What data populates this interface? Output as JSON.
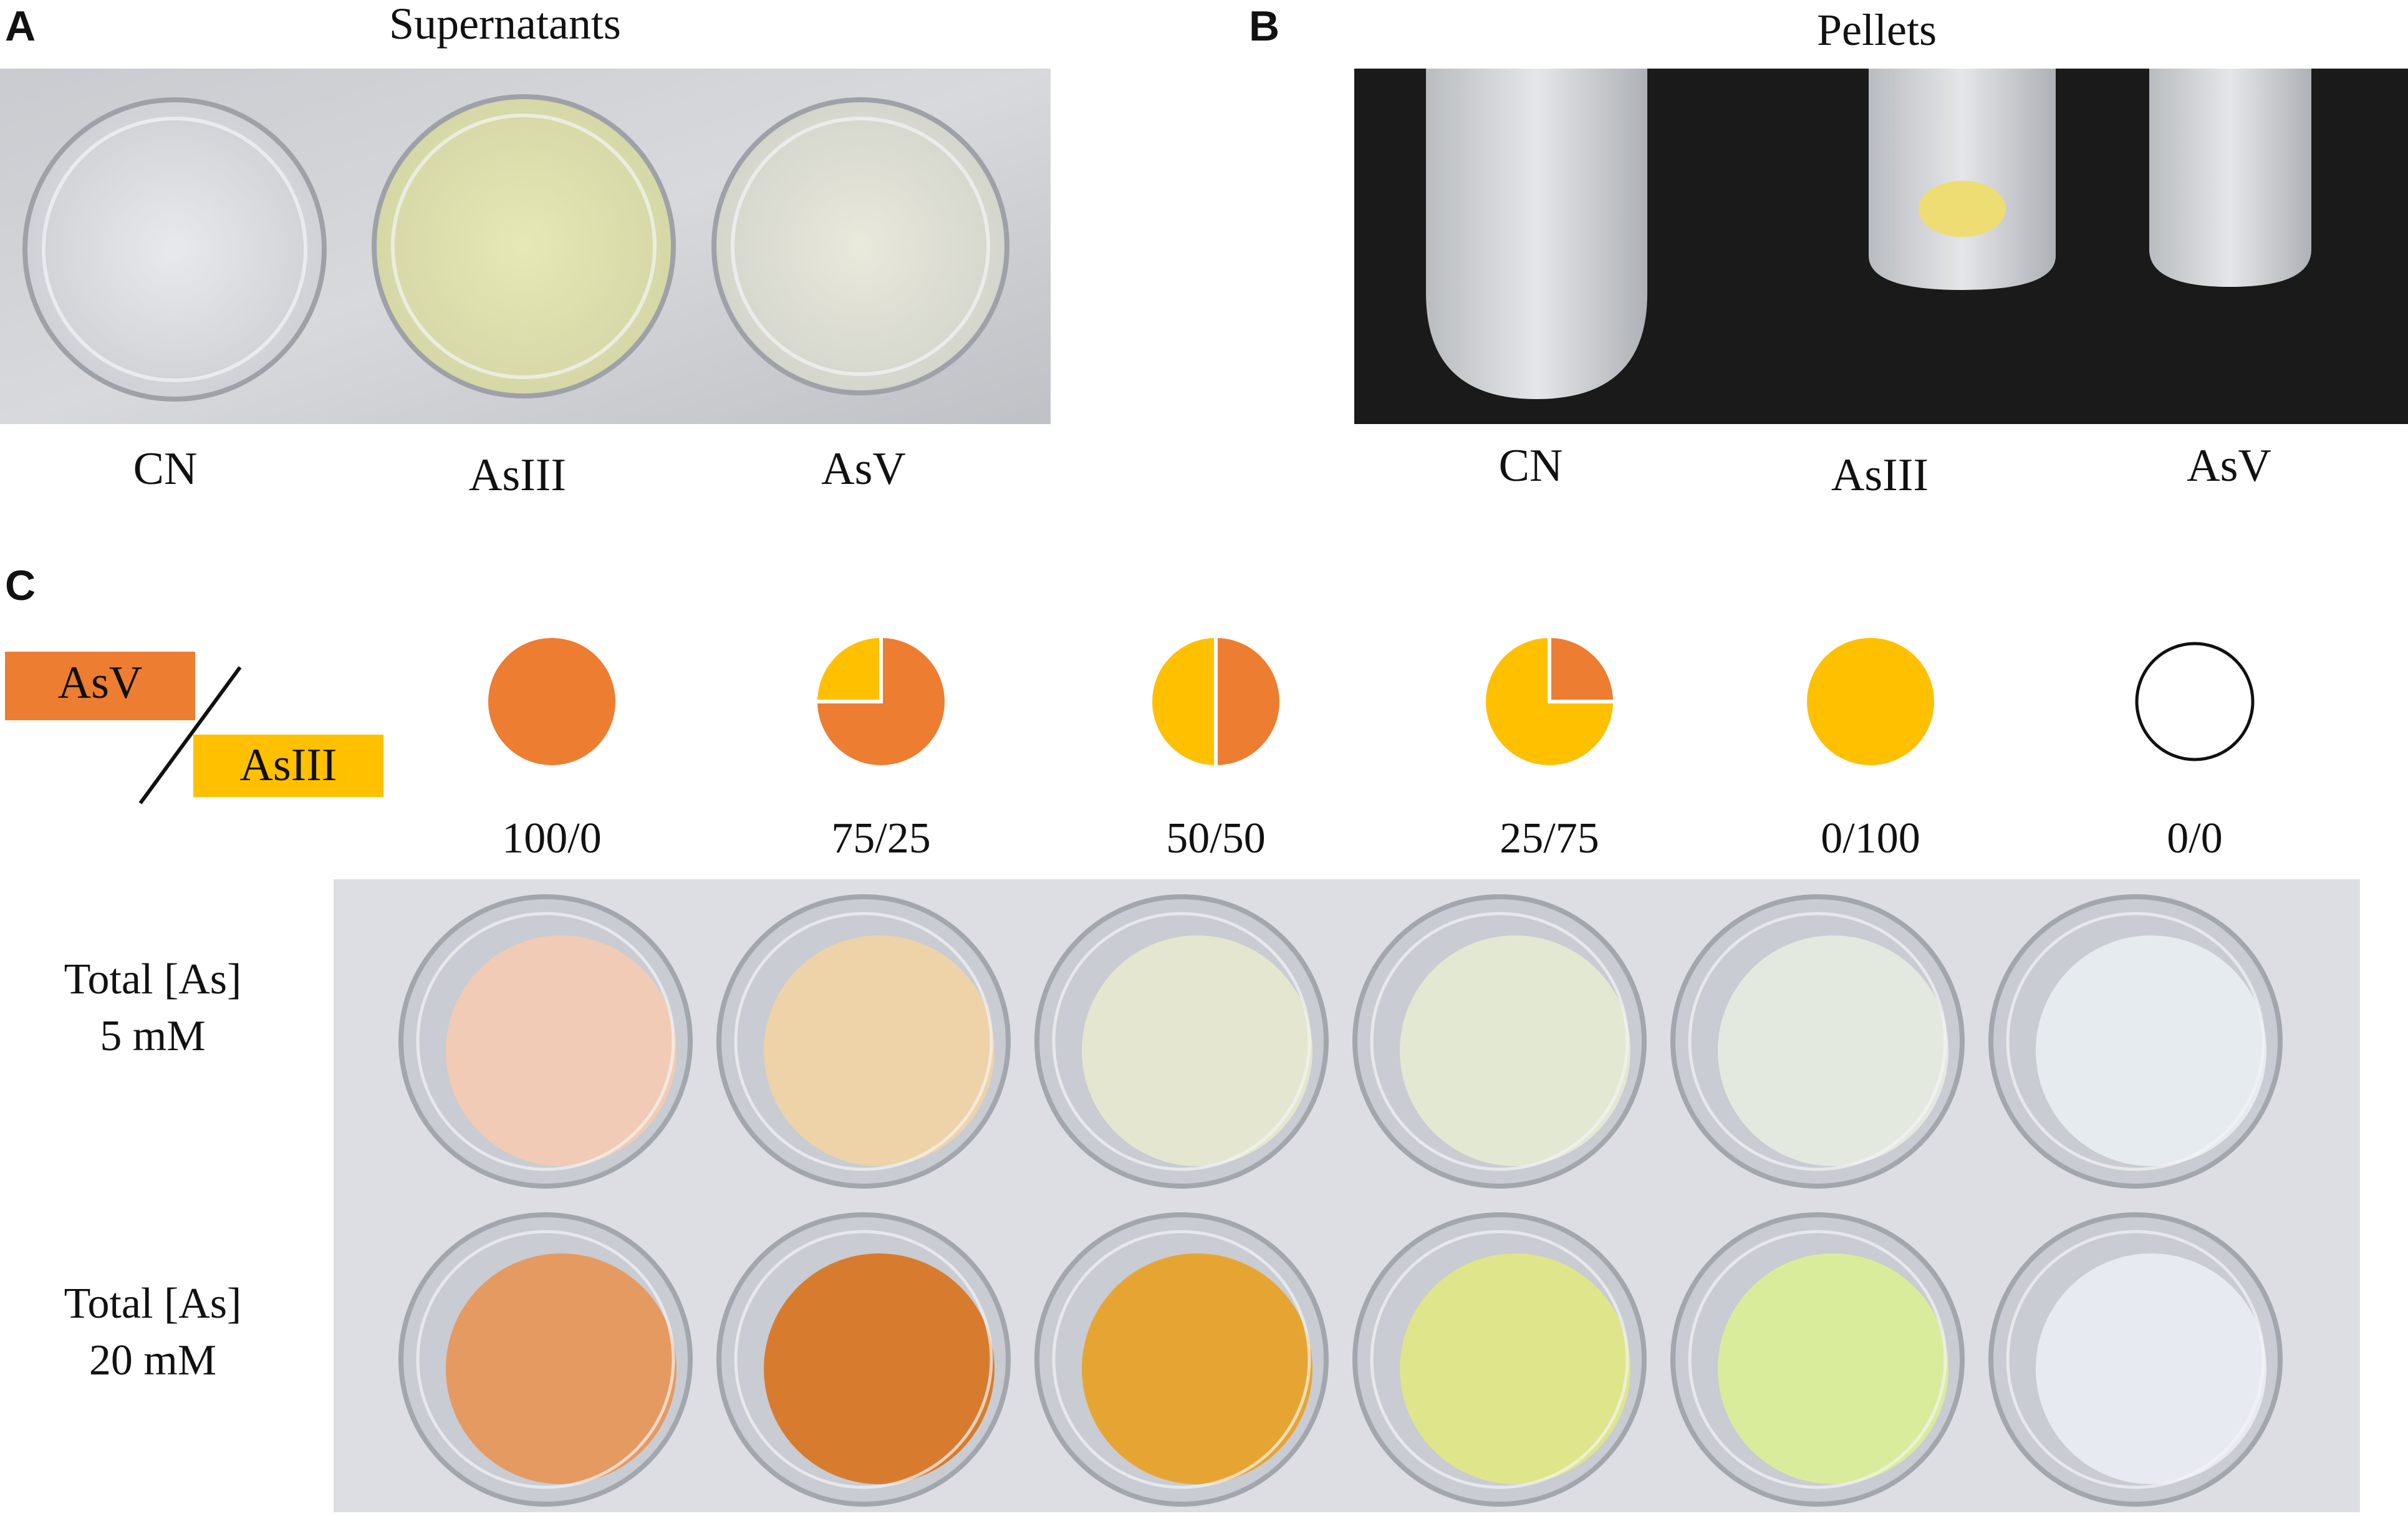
{
  "panel_a": {
    "letter": "A",
    "title": "Supernatants",
    "labels": [
      "CN",
      "AsIII",
      "AsV"
    ]
  },
  "panel_b": {
    "letter": "B",
    "title": "Pellets",
    "labels": [
      "CN",
      "AsIII",
      "AsV"
    ]
  },
  "panel_c": {
    "letter": "C",
    "legend": {
      "top": "AsV",
      "bottom": "AsIII"
    },
    "colors": {
      "asv": "#ED7D31",
      "asiii": "#FFC000"
    },
    "ratios": [
      {
        "label": "100/0",
        "asv": 100,
        "asiii": 0
      },
      {
        "label": "75/25",
        "asv": 75,
        "asiii": 25
      },
      {
        "label": "50/50",
        "asv": 50,
        "asiii": 50
      },
      {
        "label": "25/75",
        "asv": 25,
        "asiii": 75
      },
      {
        "label": "0/100",
        "asv": 0,
        "asiii": 100
      },
      {
        "label": "0/0",
        "asv": 0,
        "asiii": 0
      }
    ],
    "rows": [
      {
        "line1": "Total [As]",
        "line2": "5 mM"
      },
      {
        "line1": "Total [As]",
        "line2": "20 mM"
      }
    ],
    "well_colors": {
      "row_5mM": [
        "#f1cbb6",
        "#eed3a9",
        "#e4e6cf",
        "#e3e8d3",
        "#e4e9e0",
        "#e6ebf0"
      ],
      "row_20mM": [
        "#e59a62",
        "#d77c2f",
        "#e6a533",
        "#dfe58a",
        "#d9ec9c",
        "#e7ebf1"
      ]
    }
  }
}
